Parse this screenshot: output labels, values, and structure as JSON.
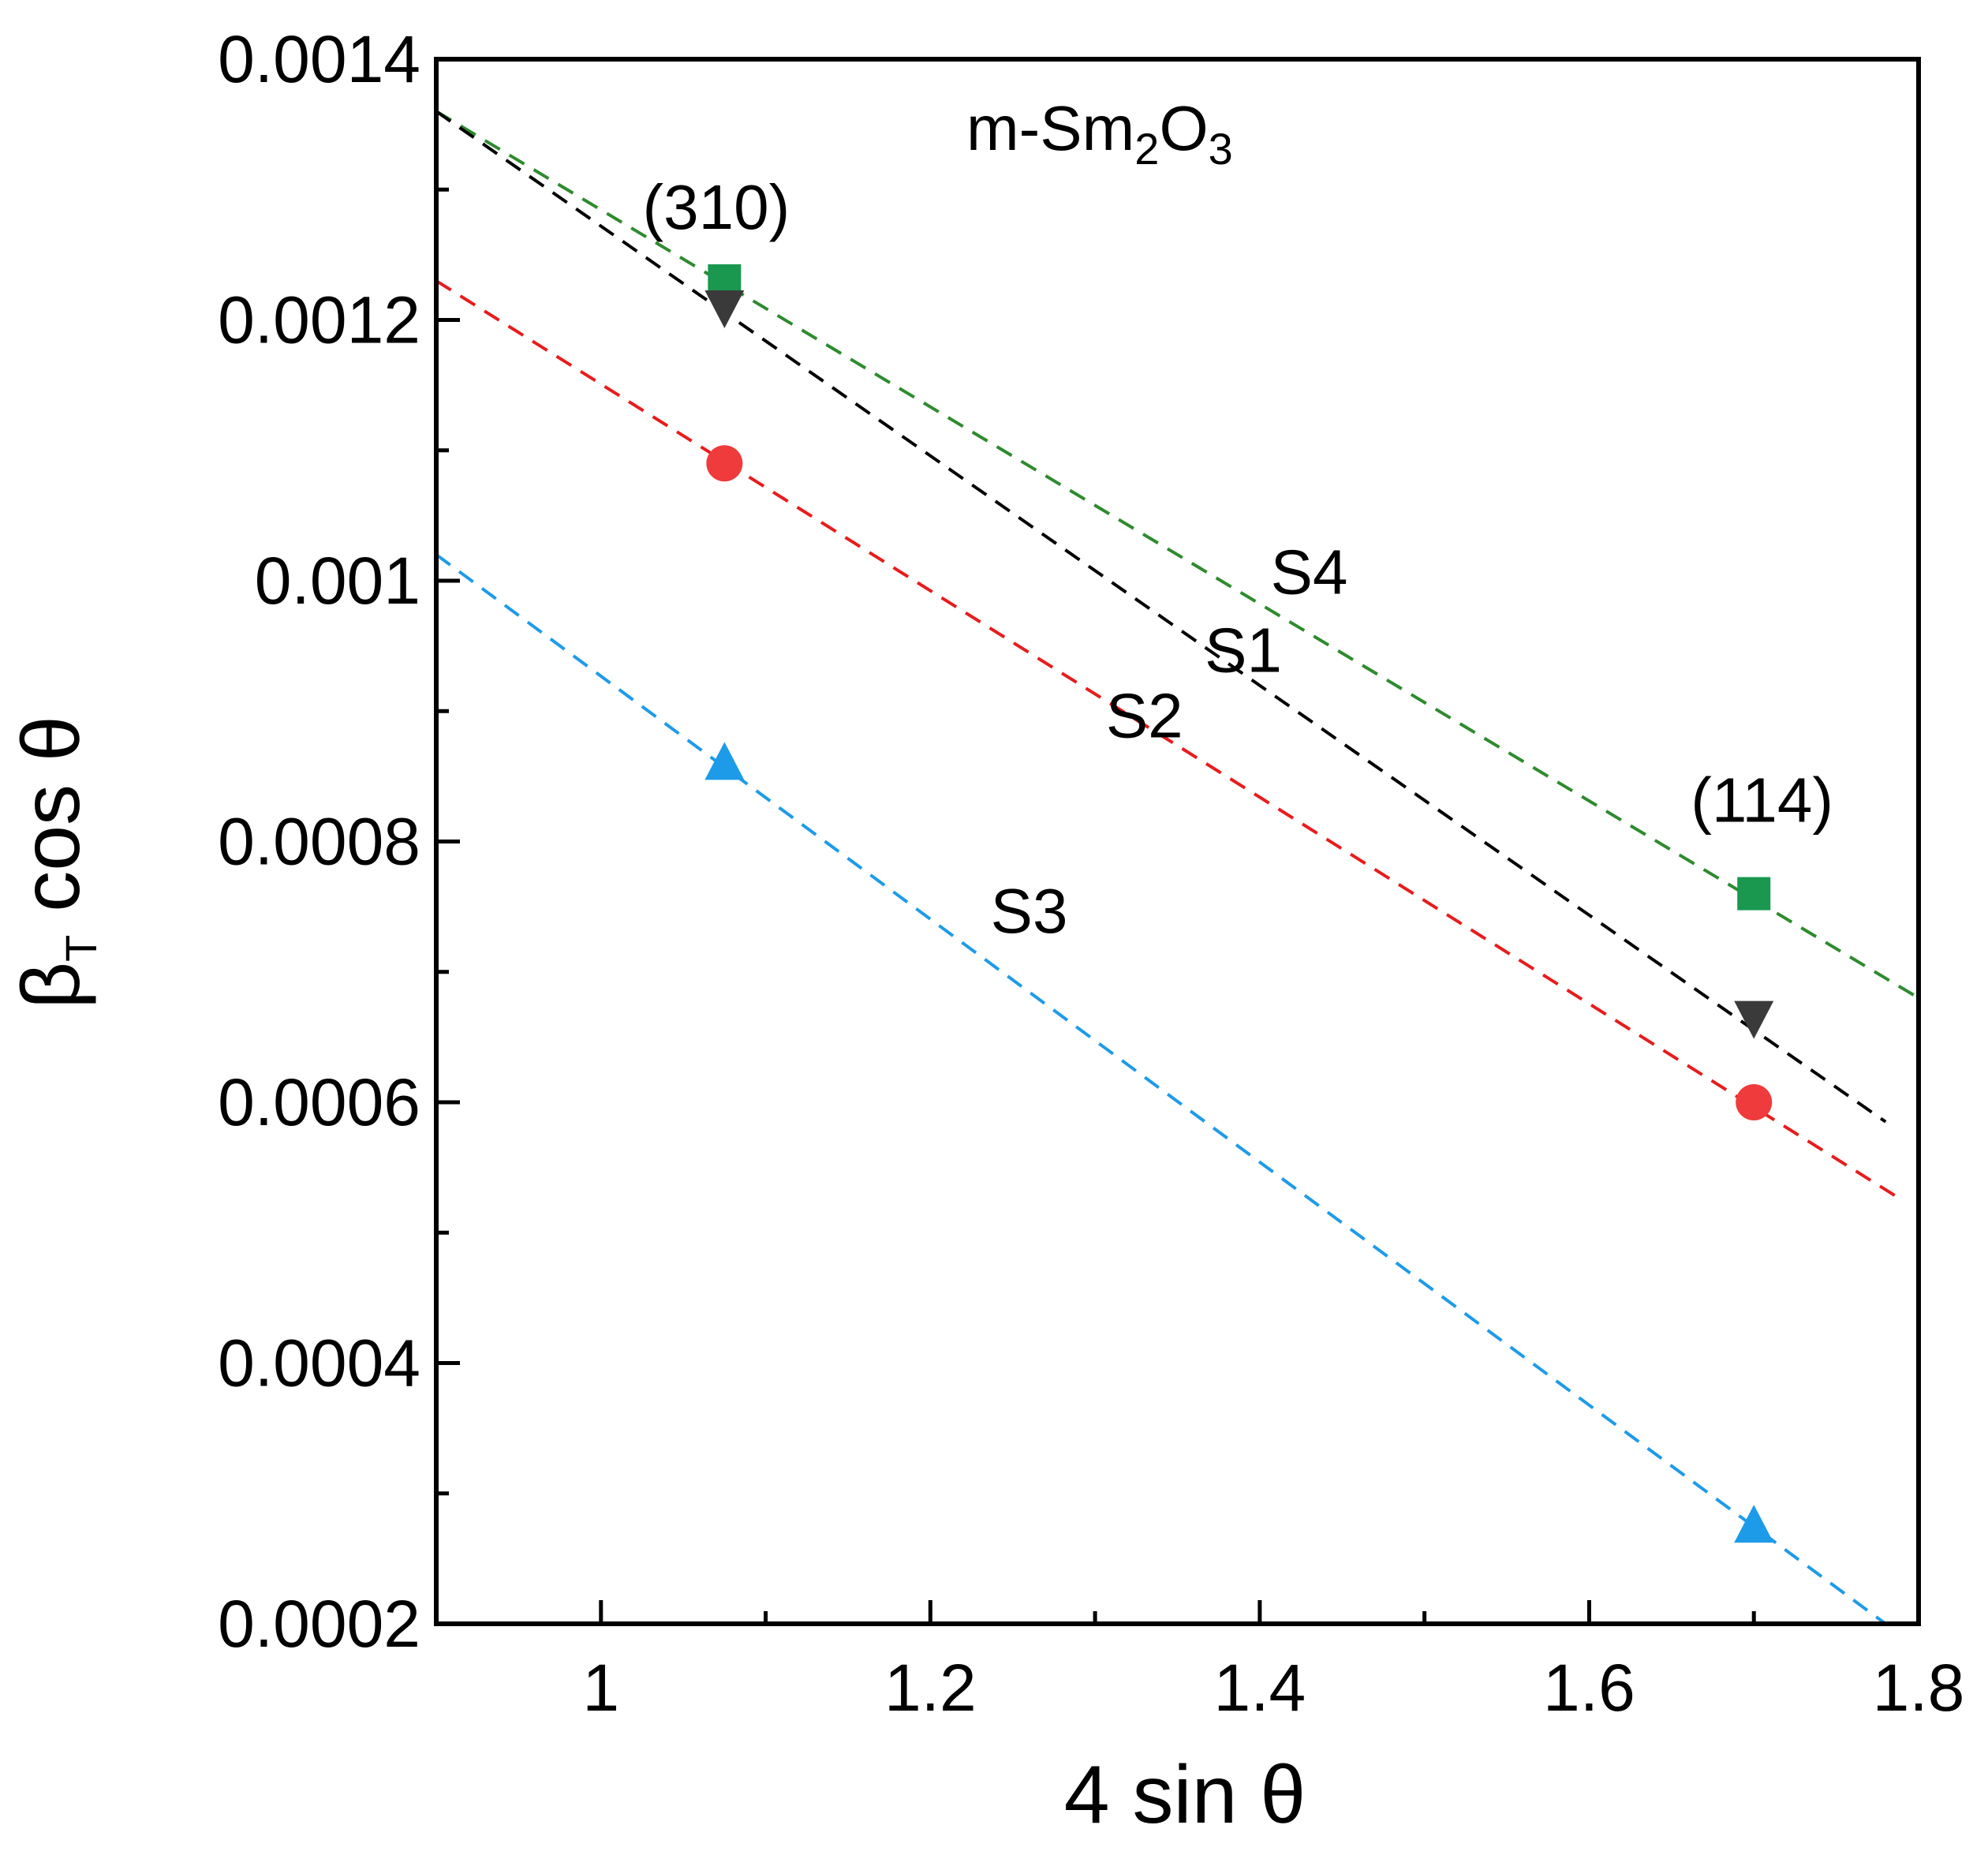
{
  "chart_data": {
    "type": "scatter",
    "title": "",
    "xlabel": "4 sin θ",
    "ylabel_main": "β",
    "ylabel_sub": "T",
    "ylabel_rest": " cos θ",
    "xlim": [
      0.9,
      1.8
    ],
    "ylim": [
      0.0002,
      0.0014
    ],
    "grid": false,
    "x_ticks": [
      1,
      1.2,
      1.4,
      1.6,
      1.8
    ],
    "x_tick_labels": [
      "1",
      "1.2",
      "1.4",
      "1.6",
      "1.8"
    ],
    "x_minor_ticks": [
      1.1,
      1.3,
      1.5,
      1.7
    ],
    "y_ticks": [
      0.0002,
      0.0004,
      0.0006,
      0.0008,
      0.001,
      0.0012,
      0.0014
    ],
    "y_tick_labels": [
      "0.0002",
      "0.0004",
      "0.0006",
      "0.0008",
      "0.001",
      "0.0012",
      "0.0014"
    ],
    "y_minor_ticks": [
      0.0003,
      0.0005,
      0.0007,
      0.0009,
      0.0011,
      0.0013
    ],
    "series": [
      {
        "name": "S4",
        "color": "#1a9850",
        "line_color": "#2e8b2e",
        "marker": "square",
        "points": [
          [
            1.075,
            0.00123
          ],
          [
            1.7,
            0.00076
          ]
        ],
        "fit": {
          "x": [
            0.9,
            1.8
          ],
          "y": [
            0.00136,
            0.00068
          ]
        }
      },
      {
        "name": "S1",
        "color": "#3a3a3a",
        "line_color": "#000000",
        "marker": "triangle-down",
        "points": [
          [
            1.075,
            0.00121
          ],
          [
            1.7,
            0.000665
          ]
        ],
        "fit": {
          "x": [
            0.9,
            1.78
          ],
          "y": [
            0.00136,
            0.000585
          ]
        }
      },
      {
        "name": "S2",
        "color": "#ef3b3b",
        "line_color": "#e81c1c",
        "marker": "circle",
        "points": [
          [
            1.075,
            0.00109
          ],
          [
            1.7,
            0.0006
          ]
        ],
        "fit": {
          "x": [
            0.9,
            1.79
          ],
          "y": [
            0.00123,
            0.000525
          ]
        }
      },
      {
        "name": "S3",
        "color": "#1e9be8",
        "line_color": "#1e9be8",
        "marker": "triangle-up",
        "points": [
          [
            1.075,
            0.00086
          ],
          [
            1.7,
            0.000275
          ]
        ],
        "fit": {
          "x": [
            0.9,
            1.78
          ],
          "y": [
            0.00102,
            0.0002
          ]
        }
      }
    ],
    "annotations": [
      {
        "text": "S4",
        "x": 1.43,
        "y": 0.00099
      },
      {
        "text": "S1",
        "x": 1.39,
        "y": 0.00093
      },
      {
        "text": "S2",
        "x": 1.33,
        "y": 0.00088
      },
      {
        "text": "S3",
        "x": 1.26,
        "y": 0.00073
      },
      {
        "text": "(310)",
        "x": 1.07,
        "y": 0.00127
      },
      {
        "text": "(114)",
        "x": 1.705,
        "y": 0.000815
      }
    ],
    "phase_label": {
      "prefix": "m-Sm",
      "sub1": "2",
      "mid": "O",
      "sub2": "3"
    }
  }
}
